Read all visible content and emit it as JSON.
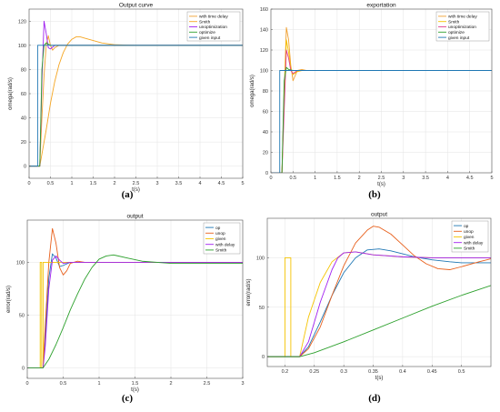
{
  "chart_data": [
    {
      "type": "line",
      "title": "Output curve",
      "xlabel": "t(s)",
      "ylabel": "omega(rad/s)",
      "xlim": [
        0,
        5
      ],
      "ylim": [
        -10,
        130
      ],
      "xticks": [
        0,
        0.5,
        1,
        1.5,
        2,
        2.5,
        3,
        3.5,
        4,
        4.5,
        5
      ],
      "yticks": [
        0,
        20,
        40,
        60,
        80,
        100,
        120
      ],
      "grid": true,
      "legend_position": "top-right",
      "caption": "(a)",
      "series": [
        {
          "name": "with time delay",
          "color": "#f0a030",
          "points": [
            [
              0,
              0
            ],
            [
              0.1,
              0
            ],
            [
              0.2,
              0
            ],
            [
              0.25,
              0
            ],
            [
              0.3,
              40
            ],
            [
              0.35,
              75
            ],
            [
              0.4,
              100
            ],
            [
              0.45,
              108
            ],
            [
              0.5,
              100
            ],
            [
              0.55,
              96
            ],
            [
              0.6,
              98
            ],
            [
              0.7,
              100
            ],
            [
              0.8,
              100
            ],
            [
              5,
              100
            ]
          ]
        },
        {
          "name": "Smith",
          "color": "#f5a623",
          "points": [
            [
              0,
              0
            ],
            [
              0.2,
              0
            ],
            [
              0.25,
              0
            ],
            [
              0.3,
              10
            ],
            [
              0.4,
              30
            ],
            [
              0.5,
              52
            ],
            [
              0.6,
              70
            ],
            [
              0.7,
              84
            ],
            [
              0.8,
              94
            ],
            [
              0.9,
              101
            ],
            [
              1.0,
              105
            ],
            [
              1.1,
              107
            ],
            [
              1.2,
              107
            ],
            [
              1.3,
              106
            ],
            [
              1.5,
              104
            ],
            [
              1.7,
              102
            ],
            [
              2.0,
              100.5
            ],
            [
              2.5,
              100
            ],
            [
              5,
              100
            ]
          ]
        },
        {
          "name": "unoptimization",
          "color": "#a020f0",
          "points": [
            [
              0,
              0
            ],
            [
              0.2,
              0
            ],
            [
              0.25,
              0
            ],
            [
              0.3,
              70
            ],
            [
              0.35,
              120
            ],
            [
              0.4,
              110
            ],
            [
              0.45,
              98
            ],
            [
              0.5,
              97
            ],
            [
              0.6,
              100
            ],
            [
              0.7,
              100
            ],
            [
              5,
              100
            ]
          ]
        },
        {
          "name": "optimize",
          "color": "#2ca02c",
          "points": [
            [
              0,
              0
            ],
            [
              0.2,
              0
            ],
            [
              0.25,
              0
            ],
            [
              0.3,
              80
            ],
            [
              0.35,
              100
            ],
            [
              0.4,
              102
            ],
            [
              0.5,
              100
            ],
            [
              5,
              100
            ]
          ]
        },
        {
          "name": "given input",
          "color": "#1f77b4",
          "points": [
            [
              0,
              0
            ],
            [
              0.2,
              0
            ],
            [
              0.2,
              100
            ],
            [
              5,
              100
            ]
          ]
        }
      ]
    },
    {
      "type": "line",
      "title": "exportation",
      "xlabel": "t(s)",
      "ylabel": "omega(rad/s)",
      "xlim": [
        0,
        5
      ],
      "ylim": [
        0,
        160
      ],
      "xticks": [
        0,
        0.5,
        1,
        1.5,
        2,
        2.5,
        3,
        3.5,
        4,
        4.5,
        5
      ],
      "yticks": [
        0,
        20,
        40,
        60,
        80,
        100,
        120,
        140,
        160
      ],
      "grid": true,
      "legend_position": "top-right",
      "caption": "(b)",
      "series": [
        {
          "name": "with time delay",
          "color": "#f0a030",
          "points": [
            [
              0,
              0
            ],
            [
              0.25,
              0
            ],
            [
              0.3,
              80
            ],
            [
              0.35,
              142
            ],
            [
              0.4,
              130
            ],
            [
              0.45,
              105
            ],
            [
              0.5,
              90
            ],
            [
              0.55,
              95
            ],
            [
              0.6,
              100
            ],
            [
              0.7,
              101
            ],
            [
              0.8,
              100
            ],
            [
              5,
              100
            ]
          ]
        },
        {
          "name": "Smith",
          "color": "#f5c400",
          "points": [
            [
              0,
              0
            ],
            [
              0.25,
              0
            ],
            [
              0.3,
              70
            ],
            [
              0.35,
              130
            ],
            [
              0.4,
              118
            ],
            [
              0.45,
              102
            ],
            [
              0.5,
              96
            ],
            [
              0.6,
              99
            ],
            [
              0.7,
              100
            ],
            [
              5,
              100
            ]
          ]
        },
        {
          "name": "unoptimization",
          "color": "#e04090",
          "points": [
            [
              0,
              0
            ],
            [
              0.25,
              0
            ],
            [
              0.3,
              60
            ],
            [
              0.35,
              120
            ],
            [
              0.4,
              112
            ],
            [
              0.45,
              100
            ],
            [
              0.5,
              97
            ],
            [
              0.6,
              100
            ],
            [
              5,
              100
            ]
          ]
        },
        {
          "name": "optimize",
          "color": "#2ca02c",
          "points": [
            [
              0,
              0
            ],
            [
              0.25,
              0
            ],
            [
              0.3,
              90
            ],
            [
              0.35,
              103
            ],
            [
              0.4,
              101
            ],
            [
              0.5,
              100
            ],
            [
              5,
              100
            ]
          ]
        },
        {
          "name": "given input",
          "color": "#1f77b4",
          "points": [
            [
              0,
              0
            ],
            [
              0.2,
              0
            ],
            [
              0.2,
              100
            ],
            [
              5,
              100
            ]
          ]
        }
      ]
    },
    {
      "type": "line",
      "title": "output",
      "xlabel": "t(s)",
      "ylabel": "error(rad/s)",
      "xlim": [
        0,
        3
      ],
      "ylim": [
        -10,
        140
      ],
      "xticks": [
        0,
        0.5,
        1,
        1.5,
        2,
        2.5,
        3
      ],
      "yticks": [
        0,
        50,
        100
      ],
      "grid": true,
      "legend_position": "top-right",
      "caption": "(c)",
      "series": [
        {
          "name": "op",
          "color": "#1f77b4",
          "points": [
            [
              0,
              0
            ],
            [
              0.22,
              0
            ],
            [
              0.25,
              30
            ],
            [
              0.3,
              85
            ],
            [
              0.35,
              108
            ],
            [
              0.4,
              104
            ],
            [
              0.45,
              96
            ],
            [
              0.5,
              97
            ],
            [
              0.6,
              100
            ],
            [
              0.8,
              100
            ],
            [
              3,
              100
            ]
          ]
        },
        {
          "name": "unop",
          "color": "#e8601c",
          "points": [
            [
              0,
              0
            ],
            [
              0.22,
              0
            ],
            [
              0.25,
              40
            ],
            [
              0.3,
              100
            ],
            [
              0.35,
              132
            ],
            [
              0.4,
              118
            ],
            [
              0.45,
              95
            ],
            [
              0.5,
              88
            ],
            [
              0.55,
              92
            ],
            [
              0.6,
              99
            ],
            [
              0.7,
              101
            ],
            [
              0.8,
              100
            ],
            [
              3,
              100
            ]
          ]
        },
        {
          "name": "given",
          "color": "#f5c400",
          "points": [
            [
              0,
              0
            ],
            [
              0.18,
              0
            ],
            [
              0.18,
              100
            ],
            [
              0.2,
              100
            ],
            [
              0.2,
              0
            ],
            [
              0.22,
              0
            ],
            [
              0.22,
              100
            ],
            [
              3,
              100
            ]
          ]
        },
        {
          "name": "with delay",
          "color": "#a020f0",
          "points": [
            [
              0,
              0
            ],
            [
              0.22,
              0
            ],
            [
              0.25,
              20
            ],
            [
              0.3,
              75
            ],
            [
              0.35,
              102
            ],
            [
              0.4,
              106
            ],
            [
              0.45,
              102
            ],
            [
              0.5,
              99
            ],
            [
              0.6,
              100
            ],
            [
              3,
              100
            ]
          ]
        },
        {
          "name": "Smith",
          "color": "#2ca02c",
          "points": [
            [
              0,
              0
            ],
            [
              0.22,
              0
            ],
            [
              0.3,
              8
            ],
            [
              0.4,
              22
            ],
            [
              0.5,
              38
            ],
            [
              0.6,
              55
            ],
            [
              0.7,
              70
            ],
            [
              0.8,
              84
            ],
            [
              0.9,
              95
            ],
            [
              1.0,
              103
            ],
            [
              1.1,
              106
            ],
            [
              1.2,
              107
            ],
            [
              1.4,
              104
            ],
            [
              1.6,
              101
            ],
            [
              2.0,
              99
            ],
            [
              2.5,
              99
            ],
            [
              3,
              99
            ]
          ]
        }
      ]
    },
    {
      "type": "line",
      "title": "output",
      "xlabel": "t(s)",
      "ylabel": "error(rad/s)",
      "xlim": [
        0.17,
        0.55
      ],
      "ylim": [
        -10,
        140
      ],
      "xticks": [
        0.2,
        0.25,
        0.3,
        0.35,
        0.4,
        0.45,
        0.5
      ],
      "yticks": [
        0,
        50,
        100
      ],
      "grid": true,
      "legend_position": "top-right",
      "caption": "(d)",
      "series": [
        {
          "name": "op",
          "color": "#1f77b4",
          "points": [
            [
              0.17,
              0
            ],
            [
              0.225,
              0
            ],
            [
              0.24,
              10
            ],
            [
              0.26,
              35
            ],
            [
              0.28,
              62
            ],
            [
              0.3,
              85
            ],
            [
              0.32,
              100
            ],
            [
              0.34,
              108
            ],
            [
              0.36,
              109
            ],
            [
              0.38,
              107
            ],
            [
              0.4,
              104
            ],
            [
              0.42,
              101
            ],
            [
              0.45,
              98
            ],
            [
              0.48,
              96
            ],
            [
              0.5,
              95
            ],
            [
              0.55,
              95
            ]
          ]
        },
        {
          "name": "unop",
          "color": "#e8601c",
          "points": [
            [
              0.17,
              0
            ],
            [
              0.225,
              0
            ],
            [
              0.24,
              8
            ],
            [
              0.26,
              30
            ],
            [
              0.28,
              62
            ],
            [
              0.3,
              92
            ],
            [
              0.32,
              115
            ],
            [
              0.34,
              128
            ],
            [
              0.35,
              132
            ],
            [
              0.36,
              131
            ],
            [
              0.38,
              124
            ],
            [
              0.4,
              113
            ],
            [
              0.42,
              102
            ],
            [
              0.44,
              94
            ],
            [
              0.46,
              89
            ],
            [
              0.48,
              88
            ],
            [
              0.5,
              91
            ],
            [
              0.53,
              96
            ],
            [
              0.55,
              99
            ]
          ]
        },
        {
          "name": "given",
          "color": "#f5c400",
          "points": [
            [
              0.17,
              0
            ],
            [
              0.2,
              0
            ],
            [
              0.2,
              100
            ],
            [
              0.21,
              100
            ],
            [
              0.21,
              0
            ],
            [
              0.225,
              0
            ],
            [
              0.24,
              40
            ],
            [
              0.26,
              75
            ],
            [
              0.28,
              96
            ],
            [
              0.3,
              105
            ],
            [
              0.32,
              106
            ],
            [
              0.35,
              103
            ],
            [
              0.4,
              101
            ],
            [
              0.45,
              100
            ],
            [
              0.55,
              100
            ]
          ]
        },
        {
          "name": "with delay",
          "color": "#a020f0",
          "points": [
            [
              0.17,
              0
            ],
            [
              0.225,
              0
            ],
            [
              0.24,
              15
            ],
            [
              0.26,
              55
            ],
            [
              0.28,
              88
            ],
            [
              0.29,
              100
            ],
            [
              0.3,
              105
            ],
            [
              0.32,
              106
            ],
            [
              0.35,
              103
            ],
            [
              0.4,
              101
            ],
            [
              0.45,
              100
            ],
            [
              0.55,
              100
            ]
          ]
        },
        {
          "name": "Smith",
          "color": "#2ca02c",
          "points": [
            [
              0.17,
              0
            ],
            [
              0.225,
              0
            ],
            [
              0.25,
              4
            ],
            [
              0.3,
              15
            ],
            [
              0.35,
              27
            ],
            [
              0.4,
              39
            ],
            [
              0.45,
              51
            ],
            [
              0.5,
              62
            ],
            [
              0.55,
              72
            ]
          ]
        }
      ]
    }
  ]
}
